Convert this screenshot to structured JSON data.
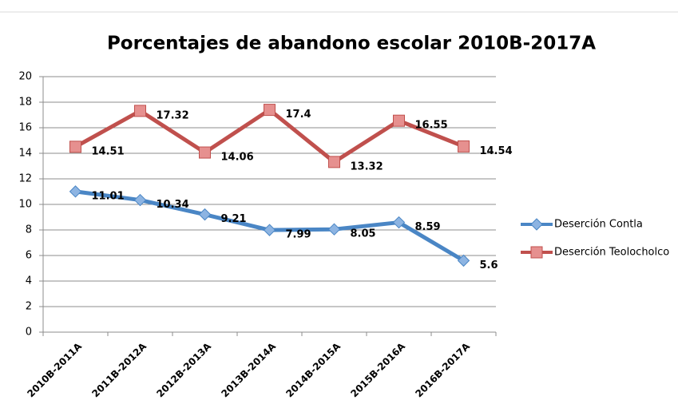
{
  "chart_data": {
    "type": "line",
    "title": "Porcentajes de abandono escolar  2010B-2017A",
    "categories": [
      "2010B-2011A",
      "2011B-2012A",
      "2012B-2013A",
      "2013B-2014A",
      "2014B-2015A",
      "2015B-2016A",
      "2016B-2017A"
    ],
    "series": [
      {
        "name": "Deserción Contla",
        "color": "#4a86c5",
        "marker": "diamond",
        "marker_color": "#8db4e2",
        "values": [
          11.01,
          10.34,
          9.21,
          7.99,
          8.05,
          8.59,
          5.6
        ]
      },
      {
        "name": "Deserción Teolocholco",
        "color": "#c0504d",
        "marker": "square",
        "marker_color": "#e6908f",
        "values": [
          14.51,
          17.32,
          14.06,
          17.4,
          13.32,
          16.55,
          14.54
        ]
      }
    ],
    "ylim": [
      0,
      20
    ],
    "yticks": [
      0,
      2,
      4,
      6,
      8,
      10,
      12,
      14,
      16,
      18,
      20
    ],
    "grid": true,
    "data_labels": true,
    "legend": "right"
  }
}
